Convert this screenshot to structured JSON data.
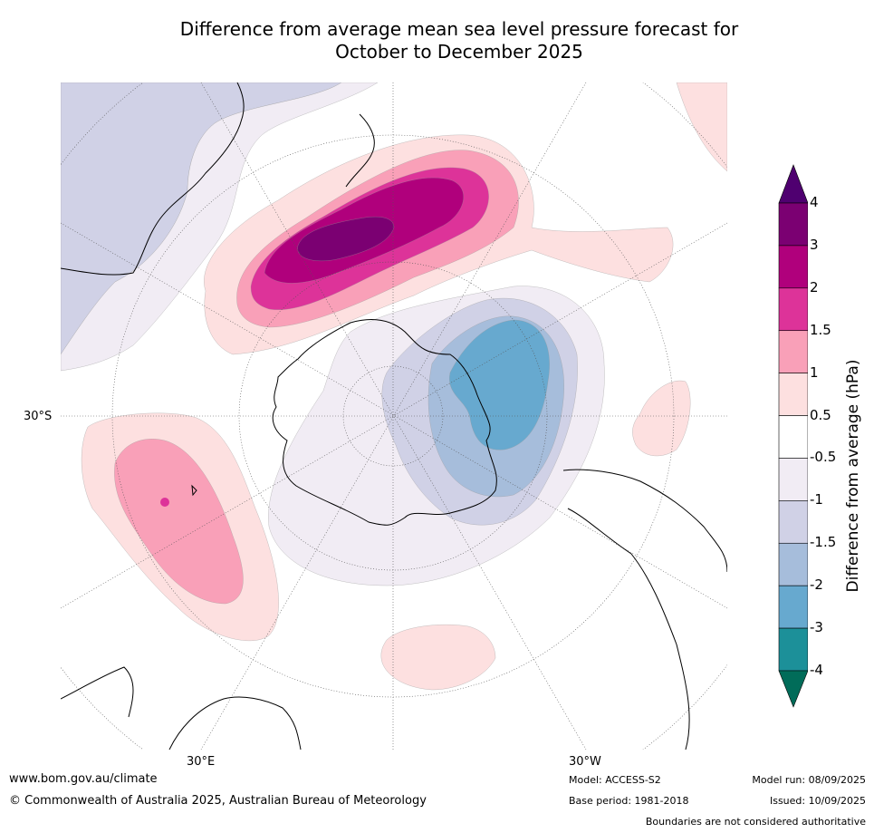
{
  "title_line1": "Difference from average mean sea level pressure forecast for",
  "title_line2": "October to December 2025",
  "map": {
    "projection": "polar stereographic, south pole centred",
    "lat_label_left": "30°S",
    "lon_label_bottom_left": "30°E",
    "lon_label_bottom_right": "30°W"
  },
  "legend": {
    "title": "Difference from average (hPa)",
    "ticks": [
      "4",
      "3",
      "2",
      "1.5",
      "1",
      "0.5",
      "-0.5",
      "-1",
      "-1.5",
      "-2",
      "-3",
      "-4"
    ],
    "colors_top_to_bottom": [
      "#4f0070",
      "#7b0072",
      "#b0007c",
      "#dd3399",
      "#f9a0b8",
      "#fde0e0",
      "#ffffff",
      "#f1ecf4",
      "#d0d1e6",
      "#a6bddb",
      "#67a9cf",
      "#1c9099",
      "#016c59"
    ],
    "over_color": "#4f0070",
    "under_color": "#016c59"
  },
  "footer": {
    "website": "www.bom.gov.au/climate",
    "copyright": "© Commonwealth of Australia 2025, Australian Bureau of Meteorology",
    "model": "Model: ACCESS-S2",
    "base_period": "Base period: 1981-2018",
    "model_run": "Model run: 08/09/2025",
    "issued": "Issued: 10/09/2025",
    "disclaimer": "Boundaries are not considered authoritative"
  }
}
